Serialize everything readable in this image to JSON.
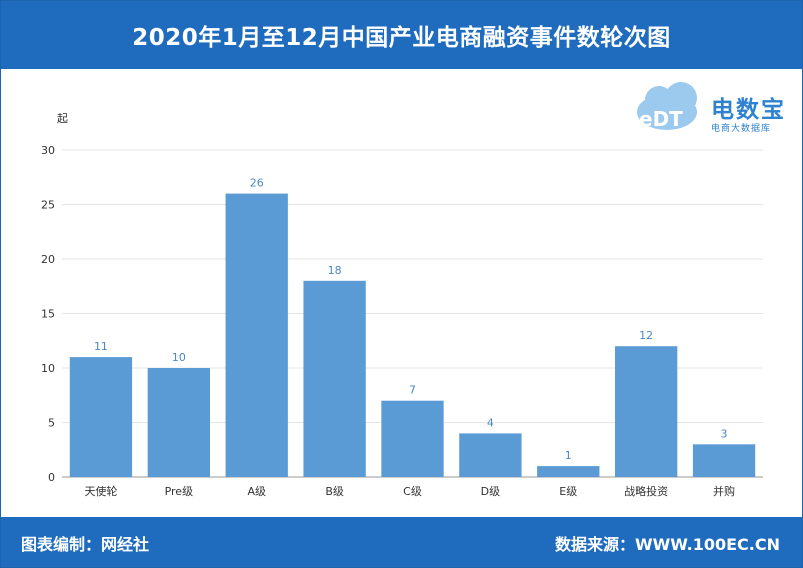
{
  "header": {
    "title": "2020年1月至12月中国产业电商融资事件数轮次图"
  },
  "logo": {
    "brand": "电数宝",
    "sub": "电商大数据库",
    "mark": "eDT"
  },
  "footer": {
    "left": "图表编制：网经社",
    "right": "数据来源：WWW.100EC.CN"
  },
  "colors": {
    "header": "#1f6cbf",
    "bar": "#5b9bd5",
    "value_label": "#4a88c7"
  },
  "chart_data": {
    "type": "bar",
    "title": "2020年1月至12月中国产业电商融资事件数轮次图",
    "ylabel": "起",
    "xlabel": "",
    "ylim": [
      0,
      30
    ],
    "yticks": [
      0,
      5,
      10,
      15,
      20,
      25,
      30
    ],
    "categories": [
      "天使轮",
      "Pre级",
      "A级",
      "B级",
      "C级",
      "D级",
      "E级",
      "战略投资",
      "并购"
    ],
    "values": [
      11,
      10,
      26,
      18,
      7,
      4,
      1,
      12,
      3
    ],
    "grid": true,
    "legend": "none"
  }
}
